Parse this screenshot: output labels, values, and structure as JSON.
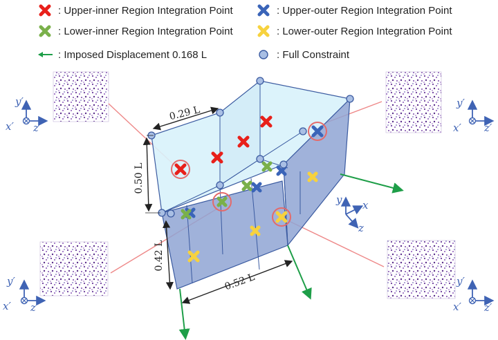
{
  "legend": {
    "upper_inner": ": Upper-inner Region Integration Point",
    "upper_outer": ": Upper-outer Region Integration Point",
    "lower_inner": ": Lower-inner Region Integration Point",
    "lower_outer": ": Lower-outer Region Integration Point",
    "displacement": ": Imposed Displacement 0.168 L",
    "constraint": ": Full Constraint"
  },
  "dimensions": {
    "top_width": "0.29 L",
    "upper_height": "0.50 L",
    "lower_height": "0.42 L",
    "bottom_length": "0.52 L"
  },
  "axes": {
    "global": {
      "x": "x",
      "y": "y",
      "z": "z"
    },
    "local": {
      "x": "x′",
      "y": "y′",
      "z": "z′"
    }
  },
  "colors": {
    "upper_inner": "#e8201a",
    "upper_outer": "#3a64b8",
    "lower_inner": "#7ab04a",
    "lower_outer": "#f7d23e",
    "displacement": "#1e9e48",
    "constraint_fill": "#a9bfe4",
    "constraint_stroke": "#3a5aa0",
    "upper_face": "#d8f2fb",
    "lower_face": "#8fa4d3",
    "highlight_ring": "#e46a6a",
    "leader": "#ee8888"
  }
}
